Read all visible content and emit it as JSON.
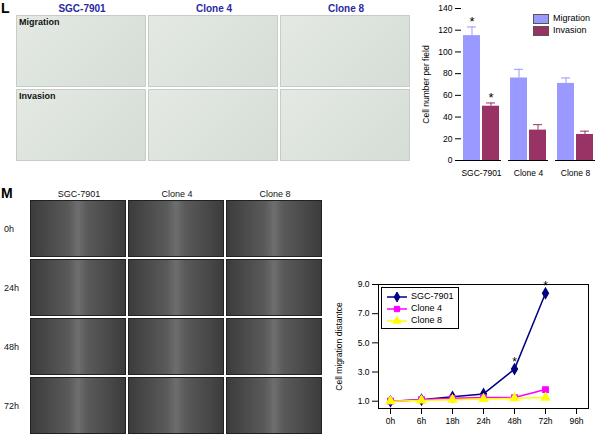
{
  "figure": {
    "panels": [
      {
        "label": "L",
        "images": {
          "columns": [
            "SGC-7901",
            "Clone 4",
            "Clone 8"
          ],
          "rows": [
            "Migration",
            "Invasion"
          ]
        }
      },
      {
        "label": "M",
        "images": {
          "columns": [
            "SGC-7901",
            "Clone 4",
            "Clone 8"
          ],
          "rows": [
            "0h",
            "24h",
            "48h",
            "72h"
          ]
        }
      }
    ]
  },
  "chart_data": [
    {
      "type": "bar",
      "categories": [
        "SGC-7901",
        "Clone 4",
        "Clone 8"
      ],
      "series": [
        {
          "name": "Migration",
          "color": "#9999ff",
          "values": [
            115,
            76,
            71
          ],
          "errors": [
            8,
            8,
            5
          ]
        },
        {
          "name": "Invasion",
          "color": "#993366",
          "values": [
            50,
            28,
            24
          ],
          "errors": [
            3,
            5,
            3
          ]
        }
      ],
      "y_label": "Cell number per field",
      "ylim": [
        0,
        140
      ],
      "yticks": [
        0,
        20,
        40,
        60,
        80,
        100,
        120,
        140
      ],
      "legend": "top-right",
      "grid": false,
      "annotations": [
        {
          "text": "*",
          "category": "SGC-7901",
          "series": "Migration"
        },
        {
          "text": "*",
          "category": "SGC-7901",
          "series": "Invasion"
        }
      ]
    },
    {
      "type": "line",
      "categories": [
        "0h",
        "6h",
        "18h",
        "24h",
        "48h",
        "72h",
        "96h"
      ],
      "series": [
        {
          "name": "SGC-7901",
          "color": "#000080",
          "marker": "diamond",
          "values": [
            1.0,
            1.1,
            1.3,
            1.5,
            3.2,
            8.4,
            null
          ]
        },
        {
          "name": "Clone 4",
          "color": "#ff00ff",
          "marker": "square",
          "values": [
            1.0,
            1.1,
            1.2,
            1.25,
            1.25,
            1.8,
            null
          ]
        },
        {
          "name": "Clone 8",
          "color": "#ffff00",
          "marker": "triangle",
          "values": [
            1.0,
            1.05,
            1.1,
            1.15,
            1.2,
            1.25,
            null
          ]
        }
      ],
      "y_label": "Cell migration distantce",
      "ylim": [
        0.5,
        9.0
      ],
      "yticks": [
        {
          "value": 1,
          "label": "1.0"
        },
        {
          "value": 3,
          "label": "3.0"
        },
        {
          "value": 5,
          "label": "5.0"
        },
        {
          "value": 7,
          "label": "7.0"
        },
        {
          "value": 9,
          "label": "9.0"
        }
      ],
      "legend": "top-left",
      "grid": false,
      "annotations": [
        {
          "text": "*",
          "category": "48h",
          "series": "SGC-7901"
        },
        {
          "text": "*",
          "category": "72h",
          "series": "SGC-7901"
        }
      ]
    }
  ]
}
